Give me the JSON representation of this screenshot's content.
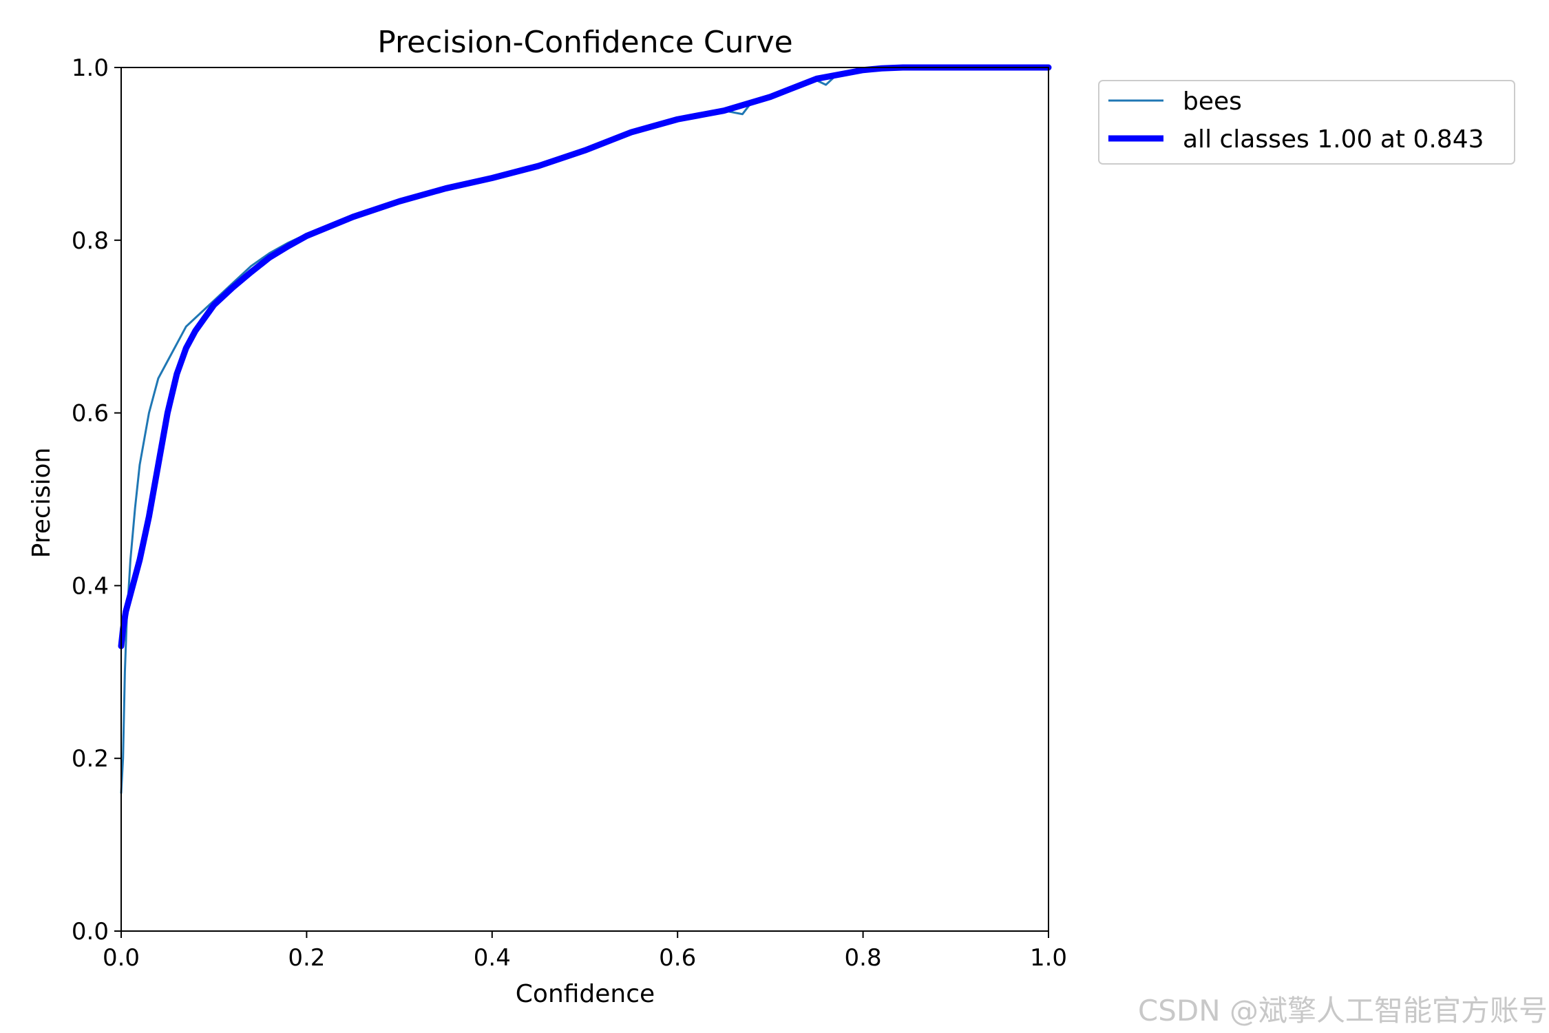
{
  "chart_data": {
    "type": "line",
    "title": "Precision-Confidence Curve",
    "xlabel": "Confidence",
    "ylabel": "Precision",
    "xlim": [
      0.0,
      1.0
    ],
    "ylim": [
      0.0,
      1.0
    ],
    "xticks": [
      "0.0",
      "0.2",
      "0.4",
      "0.6",
      "0.8",
      "1.0"
    ],
    "yticks": [
      "0.0",
      "0.2",
      "0.4",
      "0.6",
      "0.8",
      "1.0"
    ],
    "grid": false,
    "legend_position": "outside-top-right",
    "series": [
      {
        "name": "bees",
        "color": "#1f77b4",
        "x": [
          0.0,
          0.002,
          0.004,
          0.006,
          0.01,
          0.015,
          0.02,
          0.025,
          0.03,
          0.035,
          0.04,
          0.05,
          0.06,
          0.07,
          0.08,
          0.09,
          0.1,
          0.12,
          0.14,
          0.16,
          0.18,
          0.2,
          0.25,
          0.3,
          0.35,
          0.4,
          0.45,
          0.5,
          0.55,
          0.6,
          0.65,
          0.66,
          0.67,
          0.68,
          0.69,
          0.7,
          0.72,
          0.73,
          0.74,
          0.75,
          0.76,
          0.77,
          0.78,
          0.8,
          0.82,
          0.84,
          0.9,
          1.0
        ],
        "y": [
          0.16,
          0.2,
          0.3,
          0.36,
          0.43,
          0.49,
          0.54,
          0.57,
          0.6,
          0.62,
          0.64,
          0.66,
          0.68,
          0.7,
          0.71,
          0.72,
          0.73,
          0.75,
          0.77,
          0.785,
          0.797,
          0.807,
          0.827,
          0.845,
          0.86,
          0.872,
          0.885,
          0.903,
          0.925,
          0.94,
          0.95,
          0.948,
          0.946,
          0.96,
          0.962,
          0.964,
          0.975,
          0.98,
          0.982,
          0.985,
          0.98,
          0.99,
          0.992,
          0.998,
          1.0,
          1.0,
          1.0,
          1.0
        ]
      },
      {
        "name": "all classes 1.00 at 0.843",
        "color": "#0000ff",
        "x": [
          0.0,
          0.002,
          0.005,
          0.01,
          0.02,
          0.03,
          0.04,
          0.05,
          0.06,
          0.07,
          0.08,
          0.09,
          0.1,
          0.12,
          0.14,
          0.16,
          0.18,
          0.2,
          0.25,
          0.3,
          0.35,
          0.4,
          0.45,
          0.5,
          0.55,
          0.6,
          0.65,
          0.7,
          0.75,
          0.8,
          0.82,
          0.843,
          0.9,
          1.0
        ],
        "y": [
          0.33,
          0.35,
          0.37,
          0.39,
          0.43,
          0.48,
          0.54,
          0.6,
          0.645,
          0.675,
          0.695,
          0.71,
          0.725,
          0.745,
          0.763,
          0.78,
          0.793,
          0.805,
          0.827,
          0.845,
          0.86,
          0.872,
          0.886,
          0.904,
          0.925,
          0.94,
          0.95,
          0.966,
          0.987,
          0.997,
          0.999,
          1.0,
          1.0,
          1.0
        ]
      }
    ]
  },
  "watermark": "CSDN @斌擎人工智能官方账号"
}
